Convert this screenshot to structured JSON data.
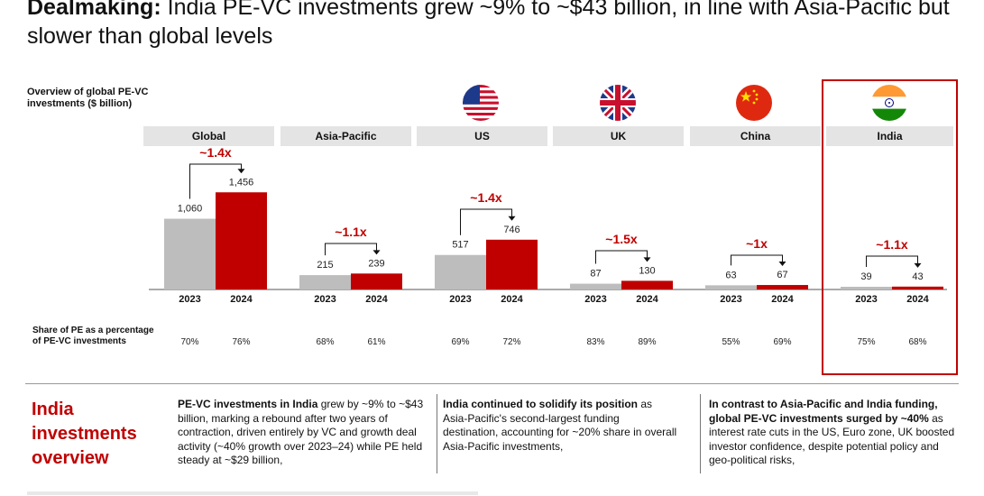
{
  "header": {
    "title_bold": "Dealmaking:",
    "title_rest": " India PE-VC investments grew ~9% to ~$43 billion, in line with Asia-Pacific but slower than global levels"
  },
  "chart_data": {
    "type": "bar",
    "subtitle": "Overview of global PE-VC investments ($ billion)",
    "years": [
      "2023",
      "2024"
    ],
    "regions": [
      {
        "name": "Global",
        "values": [
          1060,
          1456
        ],
        "labels": [
          "1,060",
          "1,456"
        ],
        "growth": "~1.4x",
        "share": [
          "70%",
          "76%"
        ]
      },
      {
        "name": "Asia-Pacific",
        "values": [
          215,
          239
        ],
        "labels": [
          "215",
          "239"
        ],
        "growth": "~1.1x",
        "share": [
          "68%",
          "61%"
        ]
      },
      {
        "name": "US",
        "values": [
          517,
          746
        ],
        "labels": [
          "517",
          "746"
        ],
        "growth": "~1.4x",
        "share": [
          "69%",
          "72%"
        ]
      },
      {
        "name": "UK",
        "values": [
          87,
          130
        ],
        "labels": [
          "87",
          "130"
        ],
        "growth": "~1.5x",
        "share": [
          "83%",
          "89%"
        ]
      },
      {
        "name": "China",
        "values": [
          63,
          67
        ],
        "labels": [
          "63",
          "67"
        ],
        "growth": "~1x",
        "share": [
          "55%",
          "69%"
        ]
      },
      {
        "name": "India",
        "values": [
          39,
          43
        ],
        "labels": [
          "39",
          "43"
        ],
        "growth": "~1.1x",
        "share": [
          "75%",
          "68%"
        ]
      }
    ],
    "colors": {
      "bar_2023": "#bdbdbd",
      "bar_2024": "#c00000",
      "growth": "#c00000"
    },
    "share_label": "Share of PE as a percentage of PE-VC investments",
    "highlighted_region": "India"
  },
  "flags": [
    "us-flag",
    "uk-flag",
    "china-flag",
    "india-flag"
  ],
  "overview": {
    "title": "India investments overview",
    "col1_bold": "PE-VC investments in India",
    "col1_rest": " grew by ~9% to ~$43 billion, marking a rebound after two years of contraction, driven entirely by VC and growth deal activity (~40% growth over 2023–24) while PE held steady at ~$29 billion,",
    "col2_bold": "India continued to solidify its position",
    "col2_rest": " as Asia-Pacific's second-largest funding destination, accounting for ~20% share in overall Asia-Pacific investments,",
    "col3_bold1": "In contrast to Asia-Pacific and India funding, global PE-VC investments surged by ~40%",
    "col3_rest": " as interest rate cuts in the US, Euro zone, UK boosted investor confidence, despite potential policy and geo-political risks,"
  }
}
